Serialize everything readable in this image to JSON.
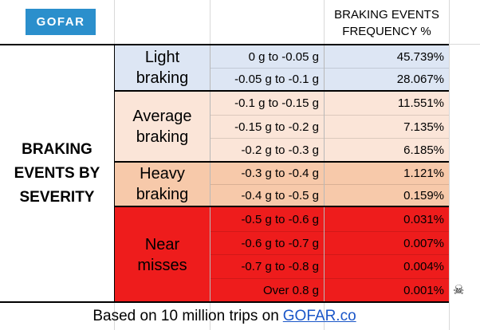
{
  "logo": {
    "text": "GOFAR",
    "color": "#2b8fcc"
  },
  "header": {
    "line1": "BRAKING EVENTS",
    "line2": "FREQUENCY %"
  },
  "main_label": {
    "line1": "BRAKING",
    "line2": "EVENTS BY",
    "line3": "SEVERITY"
  },
  "groups": [
    {
      "line1": "Light",
      "line2": "braking",
      "color": "#dde6f4"
    },
    {
      "line1": "Average",
      "line2": "braking",
      "color": "#fbe5d8"
    },
    {
      "line1": "Heavy",
      "line2": "braking",
      "color": "#f7c9aa"
    },
    {
      "line1": "Near",
      "line2": "misses",
      "color": "#ee1c1c"
    }
  ],
  "rows": [
    {
      "range": "0 g to -0.05 g",
      "freq": "45.739%"
    },
    {
      "range": "-0.05 g to -0.1 g",
      "freq": "28.067%"
    },
    {
      "range": "-0.1 g to -0.15 g",
      "freq": "11.551%"
    },
    {
      "range": "-0.15 g to -0.2 g",
      "freq": "7.135%"
    },
    {
      "range": "-0.2 g to -0.3 g",
      "freq": "6.185%"
    },
    {
      "range": "-0.3 g to -0.4 g",
      "freq": "1.121%"
    },
    {
      "range": "-0.4 g to -0.5 g",
      "freq": "0.159%"
    },
    {
      "range": "-0.5 g to -0.6 g",
      "freq": "0.031%"
    },
    {
      "range": "-0.6 g to -0.7 g",
      "freq": "0.007%"
    },
    {
      "range": "-0.7 g to -0.8 g",
      "freq": "0.004%"
    },
    {
      "range": "Over 0.8 g",
      "freq": "0.001%"
    }
  ],
  "footer": {
    "text": "Based on 10 million trips on",
    "link": "GOFAR.co"
  },
  "skull_icon": "skull-crossbones-icon"
}
